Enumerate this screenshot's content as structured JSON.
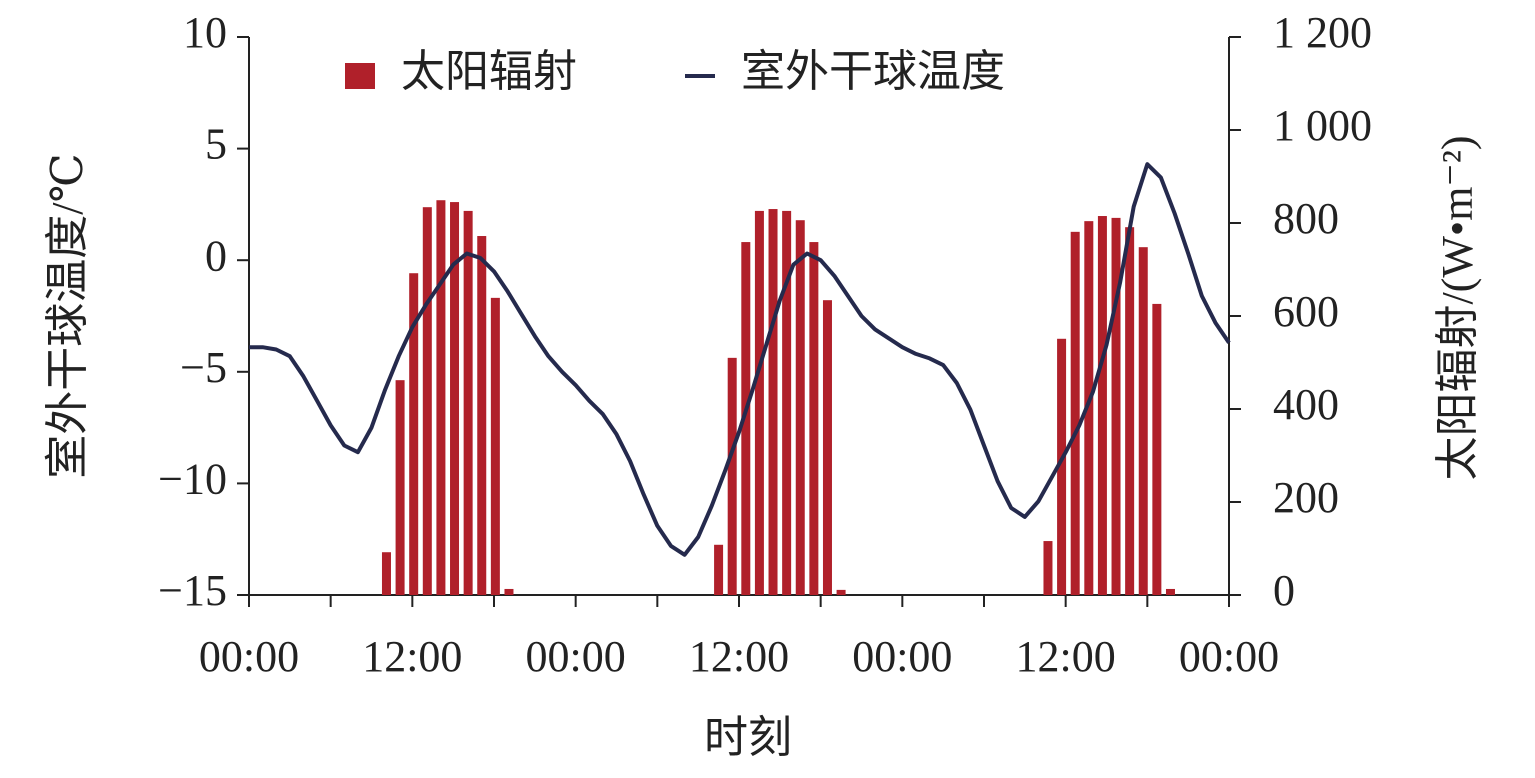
{
  "chart_data": {
    "type": "bar-line",
    "x_label": "时刻",
    "y_label": "室外干球温度/℃",
    "y2_label": "太阳辐射/(W•m⁻²)",
    "legend": "top",
    "xlim": [
      0,
      72
    ],
    "xticks": [
      {
        "value": 0,
        "label": "00:00"
      },
      {
        "value": 12,
        "label": "12:00"
      },
      {
        "value": 24,
        "label": "00:00"
      },
      {
        "value": 36,
        "label": "12:00"
      },
      {
        "value": 48,
        "label": "00:00"
      },
      {
        "value": 60,
        "label": "12:00"
      },
      {
        "value": 72,
        "label": "00:00"
      }
    ],
    "x_minor_ticks": [
      6,
      18,
      30,
      42,
      54,
      66
    ],
    "ylim": [
      -15,
      10
    ],
    "yticks": [
      {
        "value": -15,
        "label": "−15"
      },
      {
        "value": -10,
        "label": "−10"
      },
      {
        "value": -5,
        "label": "−5"
      },
      0,
      5,
      10
    ],
    "y2lim": [
      0,
      1200
    ],
    "y2ticks": [
      0,
      200,
      400,
      600,
      800,
      {
        "value": 1000,
        "label": "1 000"
      },
      {
        "value": 1200,
        "label": "1 200"
      }
    ],
    "series": [
      {
        "name": "太阳辐射",
        "type": "bar",
        "axis": "y2",
        "color": "#b0202a",
        "x": [
          10.1,
          11.1,
          12.1,
          13.1,
          14.1,
          15.1,
          16.1,
          17.1,
          18.1,
          19.1,
          34.5,
          35.5,
          36.5,
          37.5,
          38.5,
          39.5,
          40.5,
          41.5,
          42.5,
          43.5,
          58.7,
          59.7,
          60.7,
          61.7,
          62.7,
          63.7,
          64.7,
          65.7,
          66.7,
          67.7
        ],
        "values": [
          92,
          462,
          692,
          834,
          849,
          845,
          826,
          772,
          639,
          13,
          108,
          510,
          759,
          826,
          830,
          826,
          806,
          759,
          634,
          11,
          116,
          551,
          781,
          804,
          815,
          811,
          791,
          748,
          626,
          13
        ]
      },
      {
        "name": "室外干球温度",
        "type": "line",
        "axis": "y",
        "color": "#252a4d",
        "x": [
          0,
          1,
          2,
          3,
          4,
          5,
          6,
          7,
          8,
          9,
          10,
          11,
          12,
          13,
          14,
          15,
          16,
          17,
          18,
          19,
          20,
          21,
          22,
          23,
          24,
          25,
          26,
          27,
          28,
          29,
          30,
          31,
          32,
          33,
          34,
          35,
          36,
          37,
          38,
          39,
          40,
          41,
          42,
          43,
          44,
          45,
          46,
          47,
          48,
          49,
          50,
          51,
          52,
          53,
          54,
          55,
          56,
          57,
          58,
          59,
          60,
          61,
          62,
          63,
          64,
          65,
          66,
          67,
          68,
          69,
          70,
          71,
          72
        ],
        "values": [
          -3.9,
          -3.9,
          -4.0,
          -4.3,
          -5.2,
          -6.3,
          -7.4,
          -8.3,
          -8.6,
          -7.5,
          -5.8,
          -4.3,
          -3.0,
          -2.0,
          -1.1,
          -0.2,
          0.3,
          0.1,
          -0.5,
          -1.4,
          -2.4,
          -3.4,
          -4.3,
          -5.0,
          -5.6,
          -6.3,
          -6.9,
          -7.8,
          -9.0,
          -10.5,
          -11.9,
          -12.8,
          -13.2,
          -12.4,
          -11.0,
          -9.4,
          -7.7,
          -5.8,
          -3.8,
          -1.8,
          -0.2,
          0.3,
          0.0,
          -0.7,
          -1.6,
          -2.5,
          -3.1,
          -3.5,
          -3.9,
          -4.2,
          -4.4,
          -4.7,
          -5.5,
          -6.7,
          -8.3,
          -9.9,
          -11.1,
          -11.5,
          -10.8,
          -9.7,
          -8.6,
          -7.4,
          -5.9,
          -3.8,
          -1.0,
          2.4,
          4.3,
          3.7,
          2.1,
          0.3,
          -1.6,
          -2.8,
          -3.7
        ]
      }
    ]
  }
}
